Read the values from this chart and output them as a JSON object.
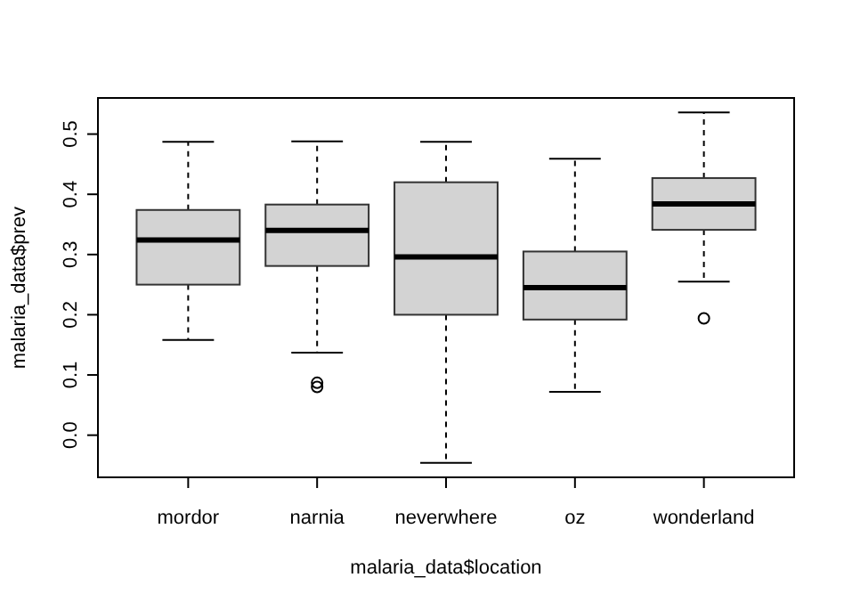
{
  "chart_data": {
    "type": "box",
    "xlabel": "malaria_data$location",
    "ylabel": "malaria_data$prev",
    "categories": [
      "mordor",
      "narnia",
      "neverwhere",
      "oz",
      "wonderland"
    ],
    "color": "#d3d3d3",
    "ylim": [
      -0.07,
      0.56
    ],
    "yticks": [
      {
        "value": 0,
        "label": "0.0"
      },
      0.1,
      0.2,
      0.3,
      0.4,
      0.5
    ],
    "boxes": [
      {
        "low": 0.158,
        "q1": 0.25,
        "median": 0.324,
        "q3": 0.374,
        "high": 0.487
      },
      {
        "low": 0.137,
        "q1": 0.281,
        "median": 0.34,
        "q3": 0.383,
        "high": 0.488,
        "outliers": [
          0.08,
          0.087
        ]
      },
      {
        "low": -0.046,
        "q1": 0.2,
        "median": 0.296,
        "q3": 0.42,
        "high": 0.487
      },
      {
        "low": 0.072,
        "q1": 0.192,
        "median": 0.245,
        "q3": 0.305,
        "high": 0.459
      },
      {
        "low": 0.255,
        "q1": 0.341,
        "median": 0.384,
        "q3": 0.427,
        "high": 0.536,
        "outliers": [
          0.194
        ]
      }
    ]
  }
}
